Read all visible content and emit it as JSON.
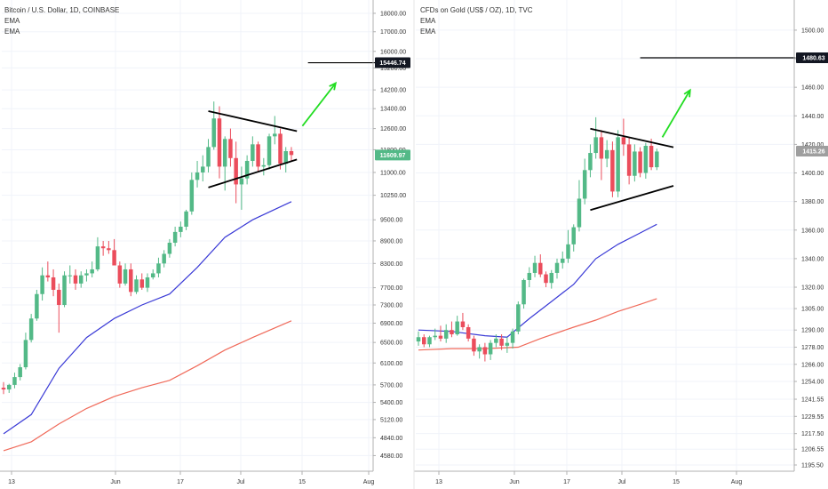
{
  "chart_data": [
    {
      "type": "candlestick",
      "title": "Bitcoin / U.S. Dollar, 1D, COINBASE",
      "legend": [
        "EMA",
        "EMA"
      ],
      "y_scale": "log",
      "ylim": [
        4400,
        18500
      ],
      "y_ticks": [
        "4580.00",
        "4840.00",
        "5120.00",
        "5400.00",
        "5700.00",
        "6100.00",
        "6500.00",
        "6900.00",
        "7300.00",
        "7700.00",
        "8300.00",
        "8900.00",
        "9500.00",
        "10250.00",
        "11000.00",
        "11800.00",
        "12600.00",
        "13400.00",
        "14200.00",
        "15200.00",
        "16000.00",
        "17000.00",
        "18000.00"
      ],
      "x_ticks": [
        "13",
        "Jun",
        "17",
        "Jul",
        "15",
        "Aug"
      ],
      "price_labels": [
        {
          "text": "15446.74",
          "value": 15446.74,
          "style": "dark"
        },
        {
          "text": "11609.97",
          "value": 11609.97,
          "style": "green"
        }
      ],
      "candles": [
        {
          "o": 5650,
          "h": 5750,
          "l": 5540,
          "c": 5620
        },
        {
          "o": 5620,
          "h": 5720,
          "l": 5560,
          "c": 5700
        },
        {
          "o": 5700,
          "h": 5920,
          "l": 5640,
          "c": 5840
        },
        {
          "o": 5840,
          "h": 6080,
          "l": 5780,
          "c": 6020
        },
        {
          "o": 6020,
          "h": 6700,
          "l": 5980,
          "c": 6550
        },
        {
          "o": 6550,
          "h": 7100,
          "l": 6500,
          "c": 7000
        },
        {
          "o": 7000,
          "h": 7650,
          "l": 6950,
          "c": 7550
        },
        {
          "o": 7550,
          "h": 8200,
          "l": 7400,
          "c": 8000
        },
        {
          "o": 8000,
          "h": 8350,
          "l": 7850,
          "c": 7950
        },
        {
          "o": 7950,
          "h": 8150,
          "l": 7500,
          "c": 7650
        },
        {
          "o": 7650,
          "h": 7800,
          "l": 6700,
          "c": 7300
        },
        {
          "o": 7300,
          "h": 8100,
          "l": 7250,
          "c": 8000
        },
        {
          "o": 8000,
          "h": 8250,
          "l": 7800,
          "c": 8000
        },
        {
          "o": 8000,
          "h": 8150,
          "l": 7650,
          "c": 7800
        },
        {
          "o": 7800,
          "h": 8100,
          "l": 7700,
          "c": 8000
        },
        {
          "o": 8000,
          "h": 8150,
          "l": 7850,
          "c": 8050
        },
        {
          "o": 8050,
          "h": 8350,
          "l": 7950,
          "c": 8150
        },
        {
          "o": 8150,
          "h": 9000,
          "l": 8100,
          "c": 8750
        },
        {
          "o": 8750,
          "h": 8900,
          "l": 8500,
          "c": 8700
        },
        {
          "o": 8700,
          "h": 8900,
          "l": 8550,
          "c": 8650
        },
        {
          "o": 8650,
          "h": 8950,
          "l": 8300,
          "c": 8250
        },
        {
          "o": 8250,
          "h": 8350,
          "l": 7700,
          "c": 7800
        },
        {
          "o": 7800,
          "h": 8300,
          "l": 7750,
          "c": 8150
        },
        {
          "o": 8150,
          "h": 8300,
          "l": 7500,
          "c": 7600
        },
        {
          "o": 7600,
          "h": 8000,
          "l": 7550,
          "c": 7900
        },
        {
          "o": 7900,
          "h": 8050,
          "l": 7650,
          "c": 7700
        },
        {
          "o": 7700,
          "h": 8050,
          "l": 7600,
          "c": 7950
        },
        {
          "o": 7950,
          "h": 8150,
          "l": 7900,
          "c": 8050
        },
        {
          "o": 8050,
          "h": 8450,
          "l": 7950,
          "c": 8300
        },
        {
          "o": 8300,
          "h": 8650,
          "l": 8200,
          "c": 8550
        },
        {
          "o": 8550,
          "h": 8950,
          "l": 8450,
          "c": 8850
        },
        {
          "o": 8850,
          "h": 9300,
          "l": 8750,
          "c": 9150
        },
        {
          "o": 9150,
          "h": 9450,
          "l": 9000,
          "c": 9300
        },
        {
          "o": 9300,
          "h": 9800,
          "l": 9200,
          "c": 9750
        },
        {
          "o": 9750,
          "h": 11000,
          "l": 9650,
          "c": 10750
        },
        {
          "o": 10750,
          "h": 11400,
          "l": 10500,
          "c": 11000
        },
        {
          "o": 11000,
          "h": 11600,
          "l": 10700,
          "c": 11200
        },
        {
          "o": 11200,
          "h": 12200,
          "l": 11000,
          "c": 11900
        },
        {
          "o": 11900,
          "h": 13700,
          "l": 11800,
          "c": 13000
        },
        {
          "o": 13000,
          "h": 13500,
          "l": 10800,
          "c": 11200
        },
        {
          "o": 11200,
          "h": 12300,
          "l": 10400,
          "c": 12200
        },
        {
          "o": 12200,
          "h": 12600,
          "l": 11200,
          "c": 11500
        },
        {
          "o": 11500,
          "h": 12100,
          "l": 10000,
          "c": 10600
        },
        {
          "o": 10600,
          "h": 11200,
          "l": 9800,
          "c": 10800
        },
        {
          "o": 10800,
          "h": 11600,
          "l": 10600,
          "c": 11400
        },
        {
          "o": 11400,
          "h": 12300,
          "l": 11200,
          "c": 12000
        },
        {
          "o": 12000,
          "h": 12100,
          "l": 11000,
          "c": 11200
        },
        {
          "o": 11200,
          "h": 11500,
          "l": 10900,
          "c": 11250
        },
        {
          "o": 11250,
          "h": 12400,
          "l": 11100,
          "c": 12300
        },
        {
          "o": 12300,
          "h": 13100,
          "l": 12000,
          "c": 12400
        },
        {
          "o": 12400,
          "h": 12600,
          "l": 11100,
          "c": 11300
        },
        {
          "o": 11300,
          "h": 11900,
          "l": 11000,
          "c": 11750
        },
        {
          "o": 11750,
          "h": 11900,
          "l": 11400,
          "c": 11610
        }
      ],
      "ema_fast": [
        [
          0,
          4900
        ],
        [
          5,
          5200
        ],
        [
          10,
          6000
        ],
        [
          15,
          6600
        ],
        [
          20,
          7000
        ],
        [
          25,
          7300
        ],
        [
          30,
          7550
        ],
        [
          35,
          8200
        ],
        [
          40,
          9000
        ],
        [
          45,
          9500
        ],
        [
          52,
          10050
        ]
      ],
      "ema_slow": [
        [
          0,
          4650
        ],
        [
          5,
          4780
        ],
        [
          10,
          5050
        ],
        [
          15,
          5300
        ],
        [
          20,
          5500
        ],
        [
          25,
          5650
        ],
        [
          30,
          5780
        ],
        [
          35,
          6050
        ],
        [
          40,
          6350
        ],
        [
          45,
          6600
        ],
        [
          52,
          6950
        ]
      ],
      "annotations": [
        {
          "type": "trendline",
          "from": [
            37,
            13300
          ],
          "to": [
            53,
            12500
          ]
        },
        {
          "type": "trendline",
          "from": [
            37,
            10500
          ],
          "to": [
            53,
            11450
          ]
        },
        {
          "type": "hline",
          "from": [
            55,
            15446.74
          ],
          "to": [
            70,
            15446.74
          ]
        },
        {
          "type": "arrow",
          "from": [
            54,
            12700
          ],
          "to": [
            60,
            14500
          ],
          "color": "#22dd22"
        }
      ]
    },
    {
      "type": "candlestick",
      "title": "CFDs on Gold (US$ / OZ), 1D, TVC",
      "legend": [
        "EMA",
        "EMA"
      ],
      "y_scale": "linear",
      "ylim": [
        1193,
        1518
      ],
      "y_ticks": [
        "1195.50",
        "1206.55",
        "1217.50",
        "1229.55",
        "1241.55",
        "1254.00",
        "1266.00",
        "1278.00",
        "1290.00",
        "1305.00",
        "1320.00",
        "1340.00",
        "1360.00",
        "1380.00",
        "1400.00",
        "1420.00",
        "1440.00",
        "1460.00",
        "1480.00",
        "1500.00"
      ],
      "x_ticks": [
        "13",
        "Jun",
        "17",
        "Jul",
        "15",
        "Aug"
      ],
      "price_labels": [
        {
          "text": "1480.63",
          "value": 1480.63,
          "style": "dark"
        },
        {
          "text": "1415.26",
          "value": 1415.26,
          "style": "gray"
        }
      ],
      "candles": [
        {
          "o": 1282,
          "h": 1289,
          "l": 1279,
          "c": 1285
        },
        {
          "o": 1285,
          "h": 1287,
          "l": 1278,
          "c": 1280
        },
        {
          "o": 1280,
          "h": 1286,
          "l": 1278,
          "c": 1285
        },
        {
          "o": 1285,
          "h": 1291,
          "l": 1283,
          "c": 1286
        },
        {
          "o": 1286,
          "h": 1293,
          "l": 1282,
          "c": 1284
        },
        {
          "o": 1284,
          "h": 1294,
          "l": 1281,
          "c": 1290
        },
        {
          "o": 1290,
          "h": 1296,
          "l": 1285,
          "c": 1287
        },
        {
          "o": 1287,
          "h": 1300,
          "l": 1286,
          "c": 1296
        },
        {
          "o": 1296,
          "h": 1302,
          "l": 1290,
          "c": 1292
        },
        {
          "o": 1292,
          "h": 1294,
          "l": 1282,
          "c": 1284
        },
        {
          "o": 1284,
          "h": 1286,
          "l": 1272,
          "c": 1275
        },
        {
          "o": 1275,
          "h": 1280,
          "l": 1270,
          "c": 1278
        },
        {
          "o": 1278,
          "h": 1281,
          "l": 1268,
          "c": 1273
        },
        {
          "o": 1273,
          "h": 1283,
          "l": 1269,
          "c": 1281
        },
        {
          "o": 1281,
          "h": 1287,
          "l": 1278,
          "c": 1284
        },
        {
          "o": 1284,
          "h": 1287,
          "l": 1276,
          "c": 1279
        },
        {
          "o": 1279,
          "h": 1285,
          "l": 1274,
          "c": 1281
        },
        {
          "o": 1281,
          "h": 1291,
          "l": 1277,
          "c": 1289
        },
        {
          "o": 1289,
          "h": 1310,
          "l": 1287,
          "c": 1308
        },
        {
          "o": 1308,
          "h": 1326,
          "l": 1305,
          "c": 1325
        },
        {
          "o": 1325,
          "h": 1334,
          "l": 1320,
          "c": 1330
        },
        {
          "o": 1330,
          "h": 1342,
          "l": 1327,
          "c": 1337
        },
        {
          "o": 1337,
          "h": 1343,
          "l": 1327,
          "c": 1329
        },
        {
          "o": 1329,
          "h": 1331,
          "l": 1320,
          "c": 1323
        },
        {
          "o": 1323,
          "h": 1332,
          "l": 1319,
          "c": 1330
        },
        {
          "o": 1330,
          "h": 1340,
          "l": 1326,
          "c": 1337
        },
        {
          "o": 1337,
          "h": 1345,
          "l": 1333,
          "c": 1340
        },
        {
          "o": 1340,
          "h": 1360,
          "l": 1337,
          "c": 1350
        },
        {
          "o": 1350,
          "h": 1364,
          "l": 1345,
          "c": 1362
        },
        {
          "o": 1362,
          "h": 1395,
          "l": 1359,
          "c": 1382
        },
        {
          "o": 1382,
          "h": 1410,
          "l": 1378,
          "c": 1402
        },
        {
          "o": 1402,
          "h": 1420,
          "l": 1397,
          "c": 1414
        },
        {
          "o": 1414,
          "h": 1439,
          "l": 1410,
          "c": 1425
        },
        {
          "o": 1425,
          "h": 1430,
          "l": 1395,
          "c": 1410
        },
        {
          "o": 1410,
          "h": 1423,
          "l": 1404,
          "c": 1416
        },
        {
          "o": 1416,
          "h": 1422,
          "l": 1383,
          "c": 1387
        },
        {
          "o": 1387,
          "h": 1430,
          "l": 1383,
          "c": 1425
        },
        {
          "o": 1425,
          "h": 1438,
          "l": 1412,
          "c": 1420
        },
        {
          "o": 1420,
          "h": 1425,
          "l": 1392,
          "c": 1398
        },
        {
          "o": 1398,
          "h": 1420,
          "l": 1394,
          "c": 1415
        },
        {
          "o": 1415,
          "h": 1418,
          "l": 1397,
          "c": 1400
        },
        {
          "o": 1400,
          "h": 1421,
          "l": 1396,
          "c": 1419
        },
        {
          "o": 1419,
          "h": 1424,
          "l": 1402,
          "c": 1404
        },
        {
          "o": 1404,
          "h": 1417,
          "l": 1402,
          "c": 1415
        }
      ],
      "ema_fast": [
        [
          0,
          1290
        ],
        [
          6,
          1289
        ],
        [
          12,
          1286
        ],
        [
          16,
          1285
        ],
        [
          20,
          1298
        ],
        [
          24,
          1310
        ],
        [
          28,
          1322
        ],
        [
          32,
          1340
        ],
        [
          36,
          1350
        ],
        [
          40,
          1358
        ],
        [
          43,
          1364
        ]
      ],
      "ema_slow": [
        [
          0,
          1276
        ],
        [
          6,
          1277
        ],
        [
          12,
          1277
        ],
        [
          18,
          1278
        ],
        [
          22,
          1284
        ],
        [
          28,
          1292
        ],
        [
          32,
          1297
        ],
        [
          36,
          1303
        ],
        [
          40,
          1308
        ],
        [
          43,
          1312
        ]
      ],
      "annotations": [
        {
          "type": "trendline",
          "from": [
            31,
            1431
          ],
          "to": [
            46,
            1418
          ]
        },
        {
          "type": "trendline",
          "from": [
            31,
            1374
          ],
          "to": [
            46,
            1391
          ]
        },
        {
          "type": "hline",
          "from": [
            40,
            1480.63
          ],
          "to": [
            68,
            1480.63
          ]
        },
        {
          "type": "arrow",
          "from": [
            44,
            1425
          ],
          "to": [
            49,
            1458
          ],
          "color": "#22dd22"
        }
      ]
    }
  ]
}
